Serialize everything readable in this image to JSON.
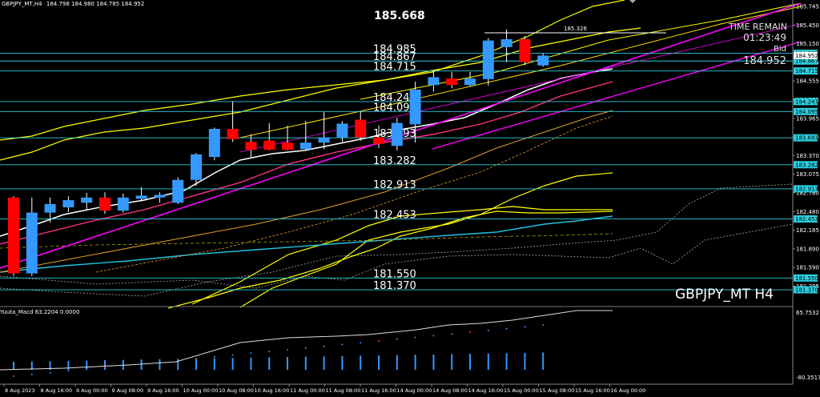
{
  "window": {
    "title": "GBPJPY_MT,H4",
    "ohlc": "184.798 184.980 184.785 184.952",
    "symbol_watermark": "GBPJPY_MT H4"
  },
  "hud": {
    "top_price": "185.668",
    "time_remain_label": "TIME REMAIN",
    "time_remain": "01:23:49",
    "bid_label": "Bid",
    "bid_value": "184.952",
    "line_label_high": "185.326"
  },
  "levels": [
    {
      "price": 184.985,
      "label": "184.985"
    },
    {
      "price": 184.867,
      "label": "184.867"
    },
    {
      "price": 184.715,
      "label": "184.715"
    },
    {
      "price": 184.247,
      "label": "184.247"
    },
    {
      "price": 184.095,
      "label": "184.095"
    },
    {
      "price": 183.693,
      "label": "183.693"
    },
    {
      "price": 183.282,
      "label": "183.282"
    },
    {
      "price": 182.913,
      "label": "182.913"
    },
    {
      "price": 182.453,
      "label": "182.453"
    },
    {
      "price": 181.55,
      "label": "181.550"
    },
    {
      "price": 181.37,
      "label": "181.370"
    }
  ],
  "price_axis": {
    "ticks": [
      "185.745",
      "185.450",
      "185.150",
      "184.855",
      "184.555",
      "184.255",
      "183.965",
      "183.665",
      "183.370",
      "183.075",
      "182.780",
      "182.480",
      "182.185",
      "181.890",
      "181.590",
      "181.295"
    ],
    "boxes": [
      "184.985",
      "184.867",
      "184.715",
      "184.247",
      "184.095",
      "183.693",
      "183.282",
      "182.913",
      "182.453",
      "181.550",
      "181.370"
    ],
    "current_box": "184.952"
  },
  "macd": {
    "title": "Yuuta_Macd 63.2204  0.0000",
    "top_value": "65.7532",
    "bottom_value": "-80.3517"
  },
  "time_axis": {
    "labels": [
      "8 Aug 2023",
      "8 Aug 16:00",
      "9 Aug 00:00",
      "9 Aug 08:00",
      "9 Aug 16:00",
      "10 Aug 00:00",
      "10 Aug 08:00",
      "10 Aug 16:00",
      "11 Aug 00:00",
      "11 Aug 08:00",
      "11 Aug 16:00",
      "14 Aug 00:00",
      "14 Aug 08:00",
      "14 Aug 16:00",
      "15 Aug 00:00",
      "15 Aug 08:00",
      "15 Aug 16:00",
      "16 Aug 00:00"
    ]
  },
  "chart_data": {
    "type": "candlestick",
    "symbol": "GBPJPY_MT",
    "timeframe": "H4",
    "candles": [
      {
        "o": 182.78,
        "h": 182.8,
        "l": 181.58,
        "c": 181.62
      },
      {
        "o": 181.62,
        "h": 182.78,
        "l": 181.58,
        "c": 182.55
      },
      {
        "o": 182.55,
        "h": 182.78,
        "l": 182.4,
        "c": 182.68
      },
      {
        "o": 182.63,
        "h": 182.8,
        "l": 182.56,
        "c": 182.74
      },
      {
        "o": 182.7,
        "h": 182.85,
        "l": 182.6,
        "c": 182.78
      },
      {
        "o": 182.78,
        "h": 182.86,
        "l": 182.53,
        "c": 182.58
      },
      {
        "o": 182.58,
        "h": 182.84,
        "l": 182.55,
        "c": 182.78
      },
      {
        "o": 182.76,
        "h": 182.94,
        "l": 182.72,
        "c": 182.81
      },
      {
        "o": 182.78,
        "h": 182.86,
        "l": 182.7,
        "c": 182.82
      },
      {
        "o": 182.7,
        "h": 183.09,
        "l": 182.68,
        "c": 183.05
      },
      {
        "o": 183.05,
        "h": 183.46,
        "l": 182.96,
        "c": 183.44
      },
      {
        "o": 183.4,
        "h": 183.85,
        "l": 183.35,
        "c": 183.83
      },
      {
        "o": 183.83,
        "h": 184.25,
        "l": 183.63,
        "c": 183.67
      },
      {
        "o": 183.63,
        "h": 183.75,
        "l": 183.4,
        "c": 183.51
      },
      {
        "o": 183.65,
        "h": 183.92,
        "l": 183.5,
        "c": 183.51
      },
      {
        "o": 183.62,
        "h": 183.88,
        "l": 183.5,
        "c": 183.51
      },
      {
        "o": 183.52,
        "h": 183.95,
        "l": 183.5,
        "c": 183.62
      },
      {
        "o": 183.62,
        "h": 184.09,
        "l": 183.52,
        "c": 183.7
      },
      {
        "o": 183.7,
        "h": 183.95,
        "l": 183.63,
        "c": 183.91
      },
      {
        "o": 183.97,
        "h": 184.1,
        "l": 183.65,
        "c": 183.7
      },
      {
        "o": 183.7,
        "h": 183.88,
        "l": 183.54,
        "c": 183.6
      },
      {
        "o": 183.57,
        "h": 184.0,
        "l": 183.5,
        "c": 183.92
      },
      {
        "o": 183.9,
        "h": 184.55,
        "l": 183.62,
        "c": 184.43
      },
      {
        "o": 184.5,
        "h": 184.72,
        "l": 184.4,
        "c": 184.62
      },
      {
        "o": 184.6,
        "h": 184.7,
        "l": 184.45,
        "c": 184.5
      },
      {
        "o": 184.5,
        "h": 184.7,
        "l": 184.48,
        "c": 184.6
      },
      {
        "o": 184.59,
        "h": 185.22,
        "l": 184.49,
        "c": 185.18
      },
      {
        "o": 185.08,
        "h": 185.35,
        "l": 184.85,
        "c": 185.2
      },
      {
        "o": 185.2,
        "h": 185.25,
        "l": 184.8,
        "c": 184.85
      },
      {
        "o": 184.8,
        "h": 184.98,
        "l": 184.78,
        "c": 184.95
      }
    ],
    "bull_color": "#3399ff",
    "bear_color": "#ff0000",
    "horizontal_levels": [
      184.985,
      184.867,
      184.715,
      184.247,
      184.095,
      183.693,
      183.282,
      182.913,
      182.453,
      181.55,
      181.37
    ],
    "marked_high": 185.668,
    "ylim": [
      181.15,
      185.8
    ],
    "grid": false
  }
}
